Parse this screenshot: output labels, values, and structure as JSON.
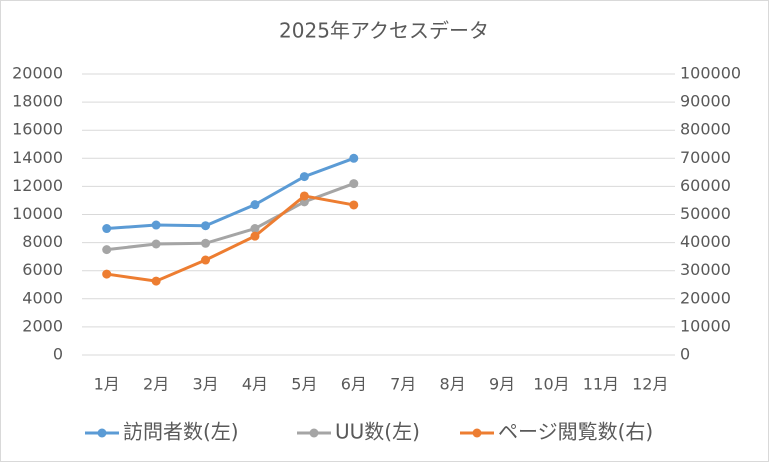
{
  "chart_data": {
    "type": "line",
    "title": "2025年アクセスデータ",
    "categories": [
      "1月",
      "2月",
      "3月",
      "4月",
      "5月",
      "6月",
      "7月",
      "8月",
      "9月",
      "10月",
      "11月",
      "12月"
    ],
    "series": [
      {
        "name": "訪問者数(左)",
        "color": "#5b9bd5",
        "values": [
          9000,
          9250,
          9200,
          10700,
          12700,
          14000,
          null,
          null,
          null,
          null,
          null,
          null
        ]
      },
      {
        "name": "UU数(左)",
        "color": "#a5a5a5",
        "values": [
          7500,
          7900,
          7950,
          9000,
          10900,
          12200,
          null,
          null,
          null,
          null,
          null,
          null
        ]
      },
      {
        "name": "ページ閲覧数(右)",
        "color": "#ed7d31",
        "axis": "y2",
        "values": [
          28800,
          26300,
          33800,
          42300,
          56600,
          53400,
          null,
          null,
          null,
          null,
          null,
          null
        ]
      }
    ],
    "ylim": [
      0,
      20000
    ],
    "yticks": [
      0,
      2000,
      4000,
      6000,
      8000,
      10000,
      12000,
      14000,
      16000,
      18000,
      20000
    ],
    "y2lim": [
      0,
      100000
    ],
    "y2ticks": [
      0,
      10000,
      20000,
      30000,
      40000,
      50000,
      60000,
      70000,
      80000,
      90000,
      100000
    ],
    "grid": true,
    "legend": "bottom"
  }
}
